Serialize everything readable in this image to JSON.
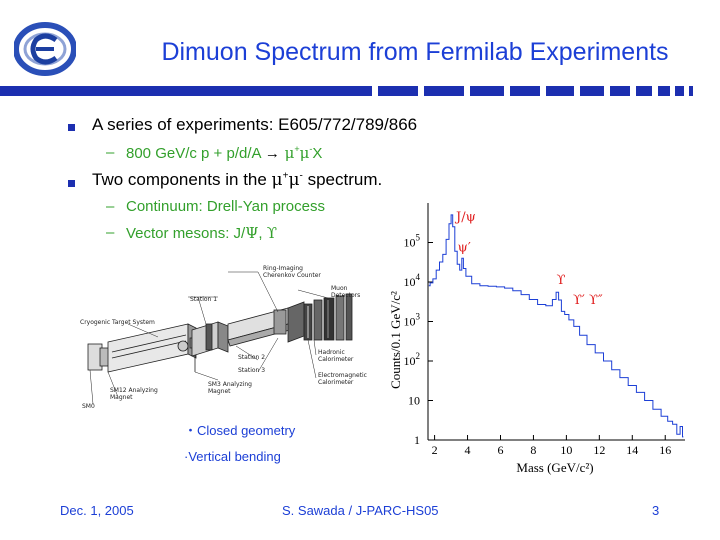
{
  "slide": {
    "title": "Dimuon Spectrum from Fermilab Experiments",
    "accent_color": "#1c3fd6",
    "green_color": "#33a02c",
    "logo_icon": "kek-e-logo-icon"
  },
  "bullets": [
    {
      "text": "A series of experiments: E605/772/789/866",
      "subs": [
        {
          "pre": "800 GeV/c p + p/d/A ",
          "arrow": "→",
          "mid": " μ",
          "sup1": "+",
          "mu2": "μ",
          "sup2": "-",
          "post": "X"
        }
      ]
    },
    {
      "text_pre": "Two components in the ",
      "mu1": "μ",
      "sup1": "+",
      "mu2": "μ",
      "sup2": "-",
      "text_post": " spectrum.",
      "subs": [
        {
          "text": "Continuum: Drell-Yan process"
        },
        {
          "text_pre": "Vector mesons: J/",
          "psi": "Ψ",
          "comma": ", ",
          "upsilon": "ϒ"
        }
      ]
    }
  ],
  "detector": {
    "labels": {
      "ring": "Ring-Imaging",
      "ring2": "Cherenkov Counter",
      "muon": "Muon",
      "muon2": "Detectors",
      "station1": "Station 1",
      "cryo": "Cryogenic Target System",
      "station2": "Station 2",
      "station3": "Station 3",
      "hadronic": "Hadronic",
      "hadronic2": "Calorimeter",
      "em": "Electromagnetic",
      "em2": "Calorimeter",
      "sm12": "SM12 Analyzing",
      "sm12b": "Magnet",
      "sm3": "SM3 Analyzing",
      "sm3b": "Magnet",
      "sm0": "SM0"
    },
    "captions": [
      "・Closed geometry",
      "·Vertical bending"
    ]
  },
  "chart_data": {
    "type": "line",
    "xlabel": "Mass (GeV/c²)",
    "ylabel": "Counts/0.1 GeV/c²",
    "x_ticks": [
      2,
      4,
      6,
      8,
      10,
      12,
      14,
      16
    ],
    "xlim": [
      1.6,
      17.2
    ],
    "y_scale": "log",
    "ylim": [
      1,
      1000000
    ],
    "y_ticks": [
      {
        "value": 1,
        "base": "1",
        "exp": ""
      },
      {
        "value": 10,
        "base": "10",
        "exp": ""
      },
      {
        "value": 100,
        "base": "10",
        "exp": "2"
      },
      {
        "value": 1000,
        "base": "10",
        "exp": "3"
      },
      {
        "value": 10000,
        "base": "10",
        "exp": "4"
      },
      {
        "value": 100000,
        "base": "10",
        "exp": "5"
      }
    ],
    "annotations": [
      {
        "text": "J/ψ",
        "x": 3.3,
        "y": 350000
      },
      {
        "text": "ψ′",
        "x": 3.4,
        "y": 60000
      },
      {
        "text": "ϒ",
        "x": 9.4,
        "y": 9000
      },
      {
        "text": "ϒ′ ϒ″",
        "x": 10.4,
        "y": 2800
      }
    ],
    "series": [
      {
        "points": [
          [
            1.65,
            8000
          ],
          [
            1.8,
            9500
          ],
          [
            2.0,
            12000
          ],
          [
            2.2,
            20000
          ],
          [
            2.4,
            32000
          ],
          [
            2.6,
            50000
          ],
          [
            2.8,
            120000
          ],
          [
            2.95,
            300000
          ],
          [
            3.05,
            500000
          ],
          [
            3.15,
            250000
          ],
          [
            3.3,
            60000
          ],
          [
            3.45,
            28000
          ],
          [
            3.6,
            20000
          ],
          [
            3.7,
            40000
          ],
          [
            3.8,
            22000
          ],
          [
            4.0,
            14000
          ],
          [
            4.5,
            9000
          ],
          [
            5.0,
            8000
          ],
          [
            5.5,
            7800
          ],
          [
            6.0,
            7500
          ],
          [
            6.5,
            7000
          ],
          [
            7.0,
            6000
          ],
          [
            7.5,
            4800
          ],
          [
            8.0,
            3600
          ],
          [
            8.5,
            2700
          ],
          [
            9.0,
            2500
          ],
          [
            9.3,
            3600
          ],
          [
            9.45,
            5500
          ],
          [
            9.6,
            3500
          ],
          [
            9.8,
            1800
          ],
          [
            10.0,
            1500
          ],
          [
            10.3,
            1100
          ],
          [
            10.6,
            750
          ],
          [
            11.0,
            450
          ],
          [
            11.5,
            260
          ],
          [
            12.0,
            160
          ],
          [
            12.5,
            100
          ],
          [
            13.0,
            60
          ],
          [
            13.5,
            38
          ],
          [
            14.0,
            24
          ],
          [
            14.5,
            16
          ],
          [
            15.0,
            10
          ],
          [
            15.5,
            6
          ],
          [
            16.0,
            4
          ],
          [
            16.3,
            3
          ],
          [
            16.6,
            2.5
          ],
          [
            16.8,
            1.4
          ],
          [
            17.0,
            2.2
          ],
          [
            17.1,
            1.2
          ]
        ]
      }
    ]
  },
  "footer": {
    "date": "Dec. 1, 2005",
    "author": "S. Sawada / J-PARC-HS05",
    "page": "3"
  }
}
